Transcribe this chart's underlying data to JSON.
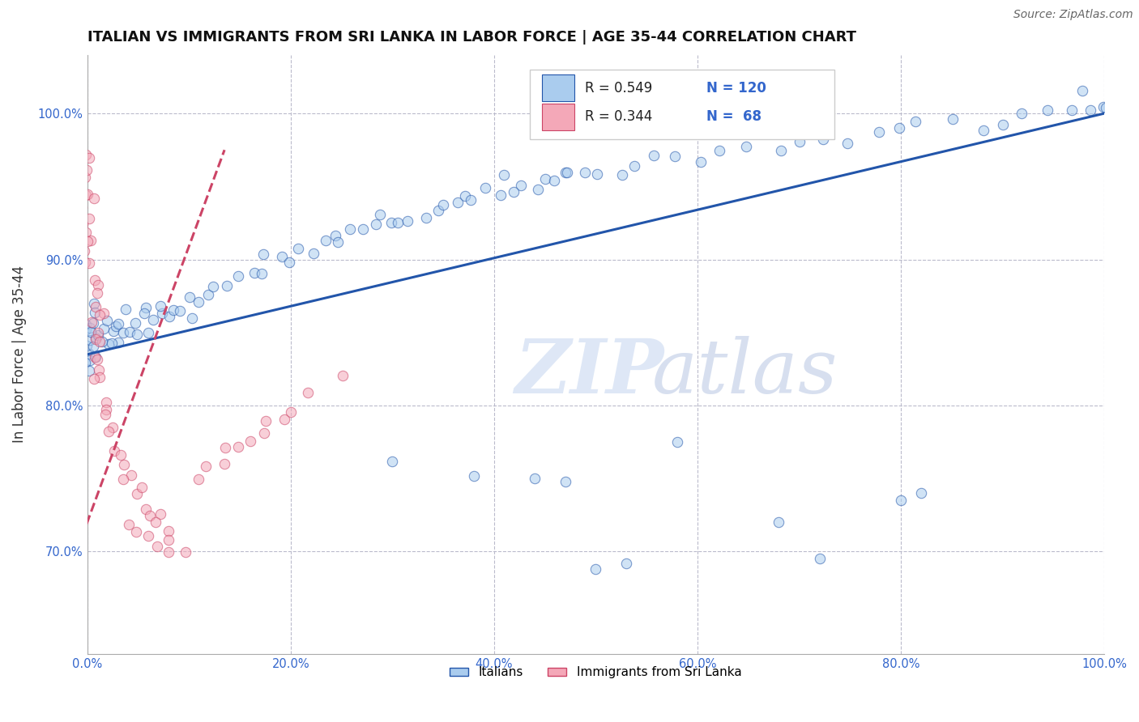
{
  "title": "ITALIAN VS IMMIGRANTS FROM SRI LANKA IN LABOR FORCE | AGE 35-44 CORRELATION CHART",
  "source_text": "Source: ZipAtlas.com",
  "ylabel": "In Labor Force | Age 35-44",
  "xlim": [
    0.0,
    1.0
  ],
  "ylim": [
    0.63,
    1.04
  ],
  "x_tick_vals": [
    0.0,
    0.2,
    0.4,
    0.6,
    0.8,
    1.0
  ],
  "y_tick_vals": [
    0.7,
    0.8,
    0.9,
    1.0
  ],
  "legend_blue_r": "0.549",
  "legend_blue_n": "120",
  "legend_pink_r": "0.344",
  "legend_pink_n": "68",
  "blue_color": "#aaccee",
  "pink_color": "#f4a8b8",
  "line_blue": "#2255aa",
  "line_pink": "#cc4466",
  "background_color": "#ffffff",
  "grid_color": "#bbbbcc",
  "scatter_alpha": 0.55,
  "scatter_size": 80,
  "blue_x": [
    0.0,
    0.0,
    0.0,
    0.0,
    0.0,
    0.0,
    0.0,
    0.0,
    0.0,
    0.0,
    0.01,
    0.01,
    0.01,
    0.01,
    0.01,
    0.01,
    0.01,
    0.02,
    0.02,
    0.02,
    0.02,
    0.02,
    0.03,
    0.03,
    0.03,
    0.03,
    0.04,
    0.04,
    0.04,
    0.05,
    0.05,
    0.05,
    0.06,
    0.06,
    0.07,
    0.07,
    0.08,
    0.08,
    0.09,
    0.09,
    0.1,
    0.1,
    0.11,
    0.12,
    0.13,
    0.14,
    0.15,
    0.16,
    0.17,
    0.18,
    0.19,
    0.2,
    0.21,
    0.22,
    0.23,
    0.24,
    0.25,
    0.26,
    0.27,
    0.28,
    0.29,
    0.3,
    0.31,
    0.32,
    0.33,
    0.34,
    0.35,
    0.36,
    0.37,
    0.38,
    0.39,
    0.4,
    0.41,
    0.42,
    0.43,
    0.44,
    0.45,
    0.46,
    0.47,
    0.48,
    0.49,
    0.5,
    0.52,
    0.54,
    0.56,
    0.58,
    0.6,
    0.62,
    0.65,
    0.68,
    0.7,
    0.72,
    0.75,
    0.78,
    0.8,
    0.82,
    0.85,
    0.88,
    0.9,
    0.92,
    0.95,
    0.97,
    0.98,
    0.99,
    1.0,
    1.0,
    1.0
  ],
  "blue_y": [
    0.835,
    0.84,
    0.845,
    0.848,
    0.852,
    0.855,
    0.86,
    0.832,
    0.828,
    0.824,
    0.838,
    0.842,
    0.845,
    0.85,
    0.854,
    0.858,
    0.862,
    0.84,
    0.844,
    0.848,
    0.853,
    0.858,
    0.845,
    0.849,
    0.854,
    0.86,
    0.848,
    0.854,
    0.86,
    0.852,
    0.858,
    0.864,
    0.855,
    0.862,
    0.858,
    0.865,
    0.86,
    0.867,
    0.862,
    0.87,
    0.865,
    0.872,
    0.87,
    0.875,
    0.88,
    0.885,
    0.888,
    0.89,
    0.893,
    0.896,
    0.9,
    0.903,
    0.905,
    0.908,
    0.91,
    0.912,
    0.915,
    0.917,
    0.919,
    0.921,
    0.923,
    0.926,
    0.928,
    0.93,
    0.932,
    0.934,
    0.936,
    0.938,
    0.94,
    0.941,
    0.943,
    0.945,
    0.947,
    0.948,
    0.95,
    0.952,
    0.953,
    0.955,
    0.957,
    0.958,
    0.96,
    0.962,
    0.964,
    0.966,
    0.968,
    0.97,
    0.972,
    0.974,
    0.976,
    0.978,
    0.98,
    0.982,
    0.984,
    0.986,
    0.988,
    0.99,
    0.992,
    0.994,
    0.996,
    0.998,
    1.0,
    1.0,
    1.0,
    1.0,
    1.0,
    1.0,
    1.0
  ],
  "blue_outlier_x": [
    0.3,
    0.38,
    0.44,
    0.47,
    0.5,
    0.53,
    0.58,
    0.68,
    0.72,
    0.8,
    0.82
  ],
  "blue_outlier_y": [
    0.762,
    0.752,
    0.75,
    0.748,
    0.688,
    0.692,
    0.775,
    0.72,
    0.695,
    0.735,
    0.74
  ],
  "pink_x": [
    0.0,
    0.0,
    0.0,
    0.0,
    0.0,
    0.0,
    0.0,
    0.0,
    0.0,
    0.0,
    0.0,
    0.0,
    0.0,
    0.0,
    0.0,
    0.0,
    0.01,
    0.01,
    0.01,
    0.01,
    0.01,
    0.01,
    0.01,
    0.01,
    0.01,
    0.01,
    0.01,
    0.01,
    0.01,
    0.01,
    0.01,
    0.02,
    0.02,
    0.02,
    0.02,
    0.02,
    0.03,
    0.03,
    0.03,
    0.04,
    0.04,
    0.05,
    0.05,
    0.06,
    0.06,
    0.07,
    0.07,
    0.08,
    0.09,
    0.1,
    0.11,
    0.12,
    0.13,
    0.14,
    0.15,
    0.16,
    0.17,
    0.18,
    0.19,
    0.2,
    0.22,
    0.25,
    0.04,
    0.05,
    0.06,
    0.07,
    0.08
  ],
  "pink_y": [
    0.97,
    0.965,
    0.96,
    0.955,
    0.95,
    0.945,
    0.94,
    0.935,
    0.93,
    0.925,
    0.92,
    0.915,
    0.91,
    0.905,
    0.9,
    0.895,
    0.885,
    0.88,
    0.875,
    0.87,
    0.865,
    0.86,
    0.855,
    0.85,
    0.845,
    0.84,
    0.835,
    0.83,
    0.825,
    0.82,
    0.815,
    0.8,
    0.795,
    0.79,
    0.785,
    0.78,
    0.77,
    0.765,
    0.76,
    0.752,
    0.748,
    0.742,
    0.738,
    0.732,
    0.728,
    0.722,
    0.718,
    0.712,
    0.706,
    0.7,
    0.752,
    0.758,
    0.762,
    0.768,
    0.772,
    0.778,
    0.782,
    0.788,
    0.792,
    0.798,
    0.808,
    0.82,
    0.72,
    0.715,
    0.71,
    0.708,
    0.704
  ]
}
